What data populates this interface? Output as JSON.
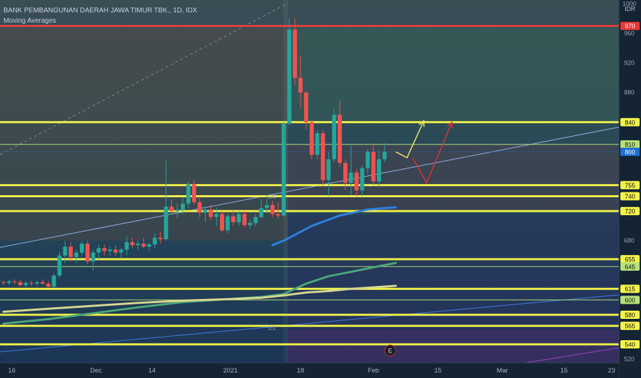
{
  "header": {
    "title": "BANK PEMBANGUNAN DAERAH JAWA TIMUR TBK., 1D, IDX",
    "indicator": "Moving Averages"
  },
  "chart_data": {
    "type": "candlestick",
    "currency": "IDR",
    "price_axis_ticks": [
      1000,
      960,
      920,
      880,
      800,
      680,
      520
    ],
    "x_tick_labels": [
      "16",
      "Dec",
      "14",
      "2021",
      "18",
      "Feb",
      "15",
      "Mar",
      "15",
      "23"
    ],
    "y_range": [
      515,
      1005
    ],
    "horizontal_levels": [
      {
        "value": 970,
        "label": "970",
        "color": "#ff3b3b",
        "highlight": true
      },
      {
        "value": 840,
        "label": "840",
        "color": "#f2f24a"
      },
      {
        "value": 810,
        "label": "810",
        "color": "#b6e07a"
      },
      {
        "value": 800,
        "label": "800",
        "color": "#1e6fd0",
        "current": true
      },
      {
        "value": 755,
        "label": "755",
        "color": "#f2f24a"
      },
      {
        "value": 740,
        "label": "740",
        "color": "#f2f24a"
      },
      {
        "value": 720,
        "label": "720",
        "color": "#f2f24a"
      },
      {
        "value": 655,
        "label": "655",
        "color": "#f2f24a"
      },
      {
        "value": 645,
        "label": "645",
        "color": "#b6e07a"
      },
      {
        "value": 615,
        "label": "615",
        "color": "#f2f24a"
      },
      {
        "value": 600,
        "label": "600",
        "color": "#b6e07a"
      },
      {
        "value": 580,
        "label": "580",
        "color": "#f2f24a"
      },
      {
        "value": 565,
        "label": "565",
        "color": "#f2f24a"
      },
      {
        "value": 540,
        "label": "540",
        "color": "#f2f24a"
      }
    ],
    "candles": [
      [
        624,
        626,
        620,
        623
      ],
      [
        623,
        627,
        620,
        625
      ],
      [
        625,
        628,
        621,
        624
      ],
      [
        624,
        627,
        618,
        620
      ],
      [
        620,
        625,
        617,
        623
      ],
      [
        623,
        626,
        619,
        622
      ],
      [
        622,
        626,
        619,
        624
      ],
      [
        624,
        628,
        620,
        622
      ],
      [
        622,
        625,
        617,
        618
      ],
      [
        618,
        636,
        616,
        633
      ],
      [
        633,
        665,
        630,
        660
      ],
      [
        660,
        680,
        650,
        672
      ],
      [
        672,
        678,
        652,
        658
      ],
      [
        658,
        668,
        650,
        664
      ],
      [
        664,
        680,
        660,
        676
      ],
      [
        676,
        680,
        648,
        652
      ],
      [
        652,
        668,
        640,
        664
      ],
      [
        664,
        675,
        655,
        670
      ],
      [
        670,
        675,
        660,
        666
      ],
      [
        666,
        672,
        660,
        668
      ],
      [
        668,
        674,
        660,
        664
      ],
      [
        664,
        670,
        656,
        668
      ],
      [
        668,
        686,
        660,
        678
      ],
      [
        678,
        684,
        670,
        674
      ],
      [
        674,
        680,
        668,
        676
      ],
      [
        676,
        684,
        670,
        672
      ],
      [
        672,
        678,
        666,
        675
      ],
      [
        675,
        690,
        670,
        684
      ],
      [
        684,
        692,
        676,
        682
      ],
      [
        682,
        790,
        680,
        726
      ],
      [
        726,
        736,
        715,
        720
      ],
      [
        720,
        730,
        710,
        722
      ],
      [
        722,
        738,
        716,
        730
      ],
      [
        730,
        760,
        724,
        756
      ],
      [
        756,
        762,
        728,
        732
      ],
      [
        732,
        740,
        712,
        718
      ],
      [
        718,
        726,
        705,
        722
      ],
      [
        722,
        728,
        708,
        712
      ],
      [
        712,
        725,
        700,
        716
      ],
      [
        716,
        720,
        692,
        694
      ],
      [
        694,
        716,
        690,
        713
      ],
      [
        713,
        722,
        700,
        705
      ],
      [
        705,
        720,
        700,
        716
      ],
      [
        716,
        720,
        698,
        701
      ],
      [
        701,
        708,
        696,
        704
      ],
      [
        704,
        716,
        700,
        712
      ],
      [
        712,
        736,
        710,
        724
      ],
      [
        724,
        742,
        718,
        728
      ],
      [
        728,
        734,
        712,
        716
      ],
      [
        716,
        732,
        710,
        714
      ],
      [
        714,
        840,
        712,
        838
      ],
      [
        838,
        980,
        836,
        965
      ],
      [
        965,
        980,
        890,
        900
      ],
      [
        900,
        930,
        860,
        880
      ],
      [
        880,
        882,
        830,
        840
      ],
      [
        840,
        842,
        790,
        796
      ],
      [
        796,
        830,
        790,
        825
      ],
      [
        825,
        830,
        755,
        762
      ],
      [
        762,
        800,
        740,
        790
      ],
      [
        790,
        858,
        786,
        850
      ],
      [
        850,
        870,
        780,
        785
      ],
      [
        785,
        790,
        748,
        758
      ],
      [
        758,
        810,
        742,
        772
      ],
      [
        772,
        776,
        740,
        748
      ],
      [
        748,
        782,
        740,
        778
      ],
      [
        778,
        804,
        770,
        800
      ],
      [
        800,
        812,
        755,
        760
      ],
      [
        760,
        802,
        752,
        790
      ],
      [
        790,
        812,
        786,
        800
      ]
    ],
    "moving_averages": [
      {
        "color": "#2f82e0",
        "width": 3,
        "values": [
          [
            48,
            674
          ],
          [
            50,
            680
          ],
          [
            55,
            700
          ],
          [
            60,
            714
          ],
          [
            65,
            722
          ],
          [
            68,
            724
          ],
          [
            70,
            725
          ]
        ]
      },
      {
        "color": "#4aa87a",
        "width": 3,
        "values": [
          [
            0,
            568
          ],
          [
            8,
            574
          ],
          [
            16,
            582
          ],
          [
            24,
            590
          ],
          [
            32,
            597
          ],
          [
            40,
            601
          ],
          [
            46,
            604
          ],
          [
            50,
            608
          ],
          [
            54,
            622
          ],
          [
            58,
            632
          ],
          [
            62,
            638
          ],
          [
            66,
            644
          ],
          [
            70,
            650
          ]
        ]
      },
      {
        "color": "#d8d890",
        "width": 3,
        "values": [
          [
            0,
            584
          ],
          [
            8,
            588
          ],
          [
            16,
            592
          ],
          [
            24,
            596
          ],
          [
            32,
            599
          ],
          [
            40,
            601
          ],
          [
            46,
            603
          ],
          [
            50,
            606
          ],
          [
            54,
            610
          ],
          [
            58,
            612
          ],
          [
            62,
            615
          ],
          [
            66,
            617
          ],
          [
            70,
            619
          ]
        ]
      }
    ],
    "projections": [
      {
        "color": "#f0e860",
        "points": [
          [
            70,
            800
          ],
          [
            72,
            792
          ],
          [
            75,
            842
          ]
        ]
      },
      {
        "color": "#e03232",
        "points": [
          [
            73,
            792
          ],
          [
            75.5,
            758
          ],
          [
            80,
            840
          ]
        ]
      }
    ],
    "earnings_marker": {
      "label": "E",
      "index": 69
    },
    "annotations": [
      "1/1",
      "2/1"
    ]
  }
}
